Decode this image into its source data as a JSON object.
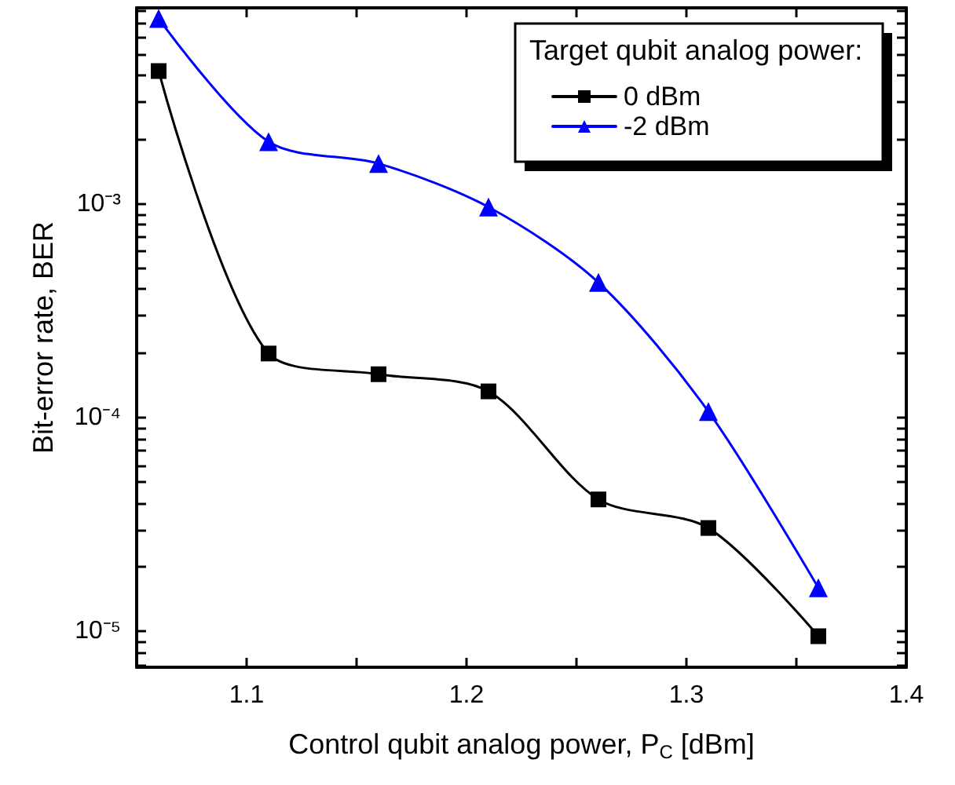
{
  "chart_data": {
    "type": "line",
    "xlabel": "Control qubit analog power, P$_{C}$ [dBm]",
    "ylabel": "Bit-error rate, BER",
    "legend_title": "Target qubit analog power:",
    "legend": "top right",
    "log": "y",
    "grid": false,
    "x": [
      1.06,
      1.11,
      1.16,
      1.21,
      1.26,
      1.31,
      1.36
    ],
    "series": [
      {
        "name": "0 dBm",
        "color": "#000000",
        "marker": "square",
        "values": [
          0.0042,
          0.0002,
          0.00016,
          0.000133,
          4.15e-05,
          3.05e-05,
          9.5e-06
        ]
      },
      {
        "name": "-2 dBm",
        "color": "#0000ff",
        "marker": "triangle",
        "values": [
          0.0074,
          0.00196,
          0.00155,
          0.00097,
          0.00043,
          0.000107,
          1.6e-05
        ]
      }
    ],
    "xlim": [
      1.05,
      1.4
    ],
    "xticks": [
      1.1,
      {
        "value": 1.15,
        "label": null
      },
      1.2,
      {
        "value": 1.25,
        "label": null
      },
      1.3,
      {
        "value": 1.35,
        "label": null
      },
      1.4
    ],
    "ylim": [
      6.8e-06,
      0.0083
    ],
    "yticks": [
      {
        "value": 7e-06,
        "label": null
      },
      {
        "value": 8e-06,
        "label": null
      },
      {
        "value": 9e-06,
        "label": null
      },
      {
        "value": 1e-05,
        "label": "10⁻⁵"
      },
      {
        "value": 2e-05,
        "label": null
      },
      {
        "value": 3e-05,
        "label": null
      },
      {
        "value": 4e-05,
        "label": null
      },
      {
        "value": 5e-05,
        "label": null
      },
      {
        "value": 6e-05,
        "label": null
      },
      {
        "value": 7e-05,
        "label": null
      },
      {
        "value": 8e-05,
        "label": null
      },
      {
        "value": 9e-05,
        "label": null
      },
      {
        "value": 0.0001,
        "label": "10⁻⁴"
      },
      {
        "value": 0.0002,
        "label": null
      },
      {
        "value": 0.0003,
        "label": null
      },
      {
        "value": 0.0004,
        "label": null
      },
      {
        "value": 0.0005,
        "label": null
      },
      {
        "value": 0.0006,
        "label": null
      },
      {
        "value": 0.0007,
        "label": null
      },
      {
        "value": 0.0008,
        "label": null
      },
      {
        "value": 0.0009,
        "label": null
      },
      {
        "value": 0.001,
        "label": "10⁻³"
      },
      {
        "value": 0.002,
        "label": null
      },
      {
        "value": 0.003,
        "label": null
      },
      {
        "value": 0.004,
        "label": null
      },
      {
        "value": 0.005,
        "label": null
      },
      {
        "value": 0.006,
        "label": null
      },
      {
        "value": 0.007,
        "label": null
      },
      {
        "value": 0.008,
        "label": null
      }
    ]
  }
}
